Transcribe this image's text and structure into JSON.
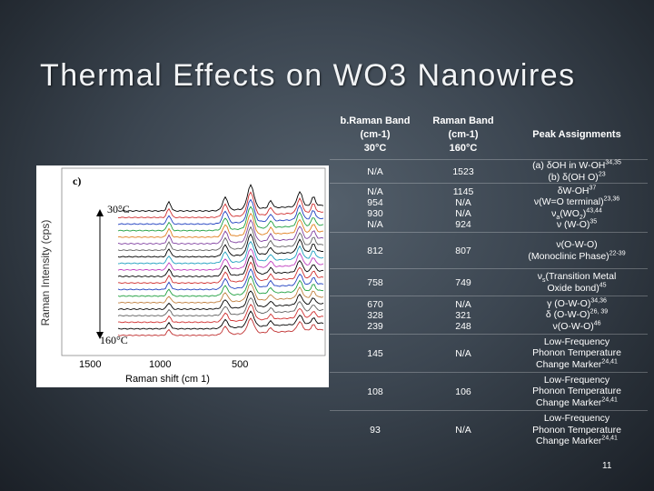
{
  "slide": {
    "title": "Thermal Effects on WO3 Nanowires",
    "page_number": "11"
  },
  "figure": {
    "panel_label": "c)",
    "y_label": "Raman Intensity (cps)",
    "x_label": "Raman shift (cm 1)",
    "x_ticks": [
      "1500",
      "1000",
      "500"
    ],
    "label_top": "30°C",
    "label_bottom": "160°C",
    "curve_colors": [
      "#000000",
      "#d03030",
      "#2040c0",
      "#20a040",
      "#e08020",
      "#8040a0",
      "#606060",
      "#000000",
      "#20a0c0",
      "#c040c0",
      "#000000",
      "#d03030",
      "#2040c0",
      "#20a040",
      "#c08040",
      "#000000",
      "#606060",
      "#d03030",
      "#000000",
      "#c03030"
    ]
  },
  "table": {
    "headers": [
      {
        "text": "b.Raman Band\n(cm-1)\n30°C"
      },
      {
        "text": "Raman Band\n(cm-1)\n160°C"
      },
      {
        "text": "Peak Assignments"
      }
    ],
    "rows": [
      {
        "c1": "N/A",
        "c2": "1523",
        "c3a": "(a) δOH in W-OH",
        "c3a_sup": "34,35",
        "c3b": "(b) δ(OH O)",
        "c3b_sup": "23"
      },
      {
        "c1": "N/A\n954\n930\nN/A",
        "c2": "1145\nN/A\nN/A\n924",
        "c3_l1": "δW-OH",
        "c3_l1_sup": "37",
        "c3_l2": "ν(W=O terminal)",
        "c3_l2_sup": "23,36",
        "c3_l3_pre": "ν",
        "c3_l3_sub": "a",
        "c3_l3": "(WO",
        "c3_l3_sub2": "2",
        "c3_l3_end": ")",
        "c3_l3_sup": "43,44",
        "c3_l4": "ν (W-O)",
        "c3_l4_sup": "35"
      },
      {
        "c1": "812",
        "c2": "807",
        "c3": "ν(O-W-O)\n(Monoclinic Phase)",
        "c3_sup": "22-39"
      },
      {
        "c1": "758",
        "c2": "749",
        "c3_pre": "ν",
        "c3_sub": "s",
        "c3": "(Transition Metal\nOxide bond)",
        "c3_sup": "45"
      },
      {
        "c1": "670\n328\n239",
        "c2": "N/A\n321\n248",
        "c3_l1": "γ (O-W-O)",
        "c3_l1_sup": "34,36",
        "c3_l2": "δ (O-W-O)",
        "c3_l2_sup": "26, 39",
        "c3_l3": "ν(O-W-O)",
        "c3_l3_sup": "46"
      },
      {
        "c1": "145",
        "c2": "N/A",
        "c3": "Low-Frequency\nPhonon Temperature\nChange Marker",
        "c3_sup": "24,41"
      },
      {
        "c1": "108",
        "c2": "106",
        "c3": "Low-Frequency\nPhonon Temperature\nChange Marker",
        "c3_sup": "24,41"
      },
      {
        "c1": "93",
        "c2": "N/A",
        "c3": "Low-Frequency\nPhonon Temperature\nChange Marker",
        "c3_sup": "24,41"
      }
    ]
  }
}
